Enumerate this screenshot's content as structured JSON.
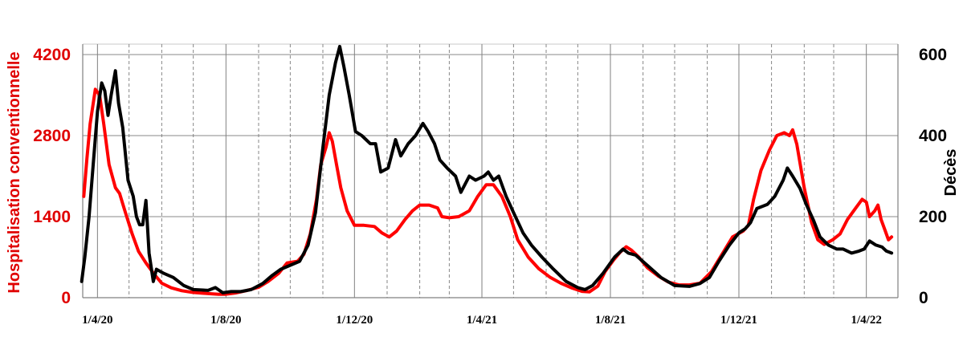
{
  "chart_data": {
    "type": "line",
    "ylabel": "Hospitalisation conventionnelle",
    "y2label": "Décès",
    "ylim": [
      0,
      4200
    ],
    "y2lim": [
      0,
      600
    ],
    "yticks": [
      0,
      1400,
      2800,
      4200
    ],
    "y2ticks": [
      0,
      200,
      400,
      600
    ],
    "xlim": [
      "2020-03-18",
      "2022-05-01"
    ],
    "xticks": [
      {
        "date": "2020-04-01",
        "label": "1/4/20"
      },
      {
        "date": "2020-08-01",
        "label": "1/8/20"
      },
      {
        "date": "2020-12-01",
        "label": "1/12/20"
      },
      {
        "date": "2021-04-01",
        "label": "1/4/21"
      },
      {
        "date": "2021-08-01",
        "label": "1/8/21"
      },
      {
        "date": "2021-12-01",
        "label": "1/12/21"
      },
      {
        "date": "2022-04-01",
        "label": "1/4/22"
      }
    ],
    "grid": true,
    "series": [
      {
        "axis": "left",
        "color": "#ff0000",
        "points": [
          [
            "2020-03-19",
            1750
          ],
          [
            "2020-03-22",
            2400
          ],
          [
            "2020-03-25",
            3000
          ],
          [
            "2020-03-30",
            3600
          ],
          [
            "2020-04-03",
            3500
          ],
          [
            "2020-04-07",
            3000
          ],
          [
            "2020-04-12",
            2300
          ],
          [
            "2020-04-18",
            1900
          ],
          [
            "2020-04-22",
            1800
          ],
          [
            "2020-04-27",
            1500
          ],
          [
            "2020-05-04",
            1100
          ],
          [
            "2020-05-10",
            800
          ],
          [
            "2020-05-17",
            600
          ],
          [
            "2020-05-25",
            400
          ],
          [
            "2020-06-01",
            250
          ],
          [
            "2020-06-10",
            170
          ],
          [
            "2020-06-20",
            120
          ],
          [
            "2020-07-01",
            90
          ],
          [
            "2020-07-15",
            70
          ],
          [
            "2020-07-25",
            60
          ],
          [
            "2020-08-01",
            60
          ],
          [
            "2020-08-10",
            80
          ],
          [
            "2020-08-20",
            120
          ],
          [
            "2020-09-01",
            180
          ],
          [
            "2020-09-10",
            280
          ],
          [
            "2020-09-20",
            420
          ],
          [
            "2020-09-28",
            600
          ],
          [
            "2020-10-08",
            630
          ],
          [
            "2020-10-14",
            750
          ],
          [
            "2020-10-20",
            1100
          ],
          [
            "2020-10-26",
            1700
          ],
          [
            "2020-10-30",
            2300
          ],
          [
            "2020-11-04",
            2600
          ],
          [
            "2020-11-07",
            2850
          ],
          [
            "2020-11-10",
            2700
          ],
          [
            "2020-11-14",
            2300
          ],
          [
            "2020-11-18",
            1900
          ],
          [
            "2020-11-24",
            1500
          ],
          [
            "2020-12-01",
            1250
          ],
          [
            "2020-12-10",
            1250
          ],
          [
            "2020-12-20",
            1230
          ],
          [
            "2020-12-27",
            1120
          ],
          [
            "2021-01-03",
            1050
          ],
          [
            "2021-01-10",
            1150
          ],
          [
            "2021-01-18",
            1350
          ],
          [
            "2021-01-25",
            1500
          ],
          [
            "2021-02-01",
            1600
          ],
          [
            "2021-02-10",
            1600
          ],
          [
            "2021-02-18",
            1550
          ],
          [
            "2021-02-22",
            1400
          ],
          [
            "2021-03-01",
            1380
          ],
          [
            "2021-03-10",
            1400
          ],
          [
            "2021-03-20",
            1500
          ],
          [
            "2021-03-28",
            1750
          ],
          [
            "2021-04-05",
            1950
          ],
          [
            "2021-04-12",
            1950
          ],
          [
            "2021-04-20",
            1750
          ],
          [
            "2021-04-28",
            1400
          ],
          [
            "2021-05-05",
            1000
          ],
          [
            "2021-05-15",
            700
          ],
          [
            "2021-05-25",
            500
          ],
          [
            "2021-06-05",
            350
          ],
          [
            "2021-06-15",
            250
          ],
          [
            "2021-06-25",
            170
          ],
          [
            "2021-07-05",
            110
          ],
          [
            "2021-07-12",
            100
          ],
          [
            "2021-07-20",
            200
          ],
          [
            "2021-07-27",
            450
          ],
          [
            "2021-08-04",
            650
          ],
          [
            "2021-08-10",
            780
          ],
          [
            "2021-08-16",
            880
          ],
          [
            "2021-08-21",
            820
          ],
          [
            "2021-08-28",
            700
          ],
          [
            "2021-09-05",
            520
          ],
          [
            "2021-09-15",
            380
          ],
          [
            "2021-09-25",
            270
          ],
          [
            "2021-10-05",
            220
          ],
          [
            "2021-10-15",
            220
          ],
          [
            "2021-10-25",
            250
          ],
          [
            "2021-11-05",
            450
          ],
          [
            "2021-11-15",
            750
          ],
          [
            "2021-11-25",
            1050
          ],
          [
            "2021-12-05",
            1150
          ],
          [
            "2021-12-10",
            1250
          ],
          [
            "2021-12-15",
            1700
          ],
          [
            "2021-12-22",
            2200
          ],
          [
            "2021-12-30",
            2550
          ],
          [
            "2022-01-06",
            2800
          ],
          [
            "2022-01-13",
            2850
          ],
          [
            "2022-01-18",
            2800
          ],
          [
            "2022-01-21",
            2900
          ],
          [
            "2022-01-25",
            2650
          ],
          [
            "2022-02-01",
            1900
          ],
          [
            "2022-02-08",
            1300
          ],
          [
            "2022-02-14",
            1000
          ],
          [
            "2022-02-20",
            920
          ],
          [
            "2022-02-28",
            1000
          ],
          [
            "2022-03-07",
            1100
          ],
          [
            "2022-03-14",
            1350
          ],
          [
            "2022-03-22",
            1550
          ],
          [
            "2022-03-28",
            1700
          ],
          [
            "2022-04-01",
            1650
          ],
          [
            "2022-04-04",
            1400
          ],
          [
            "2022-04-09",
            1500
          ],
          [
            "2022-04-12",
            1600
          ],
          [
            "2022-04-15",
            1350
          ],
          [
            "2022-04-19",
            1150
          ],
          [
            "2022-04-22",
            1000
          ],
          [
            "2022-04-25",
            1050
          ]
        ]
      },
      {
        "axis": "right",
        "color": "#000000",
        "points": [
          [
            "2020-03-17",
            40
          ],
          [
            "2020-03-20",
            100
          ],
          [
            "2020-03-24",
            200
          ],
          [
            "2020-03-28",
            330
          ],
          [
            "2020-04-01",
            460
          ],
          [
            "2020-04-05",
            530
          ],
          [
            "2020-04-08",
            510
          ],
          [
            "2020-04-11",
            450
          ],
          [
            "2020-04-14",
            500
          ],
          [
            "2020-04-18",
            560
          ],
          [
            "2020-04-21",
            480
          ],
          [
            "2020-04-25",
            420
          ],
          [
            "2020-04-30",
            290
          ],
          [
            "2020-05-05",
            250
          ],
          [
            "2020-05-08",
            200
          ],
          [
            "2020-05-11",
            180
          ],
          [
            "2020-05-14",
            180
          ],
          [
            "2020-05-17",
            240
          ],
          [
            "2020-05-20",
            110
          ],
          [
            "2020-05-24",
            40
          ],
          [
            "2020-05-27",
            70
          ],
          [
            "2020-06-03",
            60
          ],
          [
            "2020-06-12",
            50
          ],
          [
            "2020-06-22",
            30
          ],
          [
            "2020-07-01",
            20
          ],
          [
            "2020-07-15",
            18
          ],
          [
            "2020-07-22",
            25
          ],
          [
            "2020-07-29",
            12
          ],
          [
            "2020-08-06",
            15
          ],
          [
            "2020-08-15",
            15
          ],
          [
            "2020-08-25",
            20
          ],
          [
            "2020-09-05",
            35
          ],
          [
            "2020-09-14",
            55
          ],
          [
            "2020-09-22",
            70
          ],
          [
            "2020-10-01",
            80
          ],
          [
            "2020-10-10",
            90
          ],
          [
            "2020-10-18",
            130
          ],
          [
            "2020-10-25",
            210
          ],
          [
            "2020-11-01",
            370
          ],
          [
            "2020-11-07",
            500
          ],
          [
            "2020-11-13",
            580
          ],
          [
            "2020-11-17",
            620
          ],
          [
            "2020-11-21",
            570
          ],
          [
            "2020-11-26",
            500
          ],
          [
            "2020-12-02",
            410
          ],
          [
            "2020-12-08",
            400
          ],
          [
            "2020-12-16",
            380
          ],
          [
            "2020-12-21",
            380
          ],
          [
            "2020-12-26",
            310
          ],
          [
            "2021-01-02",
            320
          ],
          [
            "2021-01-09",
            390
          ],
          [
            "2021-01-14",
            350
          ],
          [
            "2021-01-21",
            380
          ],
          [
            "2021-01-28",
            400
          ],
          [
            "2021-02-04",
            430
          ],
          [
            "2021-02-09",
            410
          ],
          [
            "2021-02-15",
            380
          ],
          [
            "2021-02-20",
            340
          ],
          [
            "2021-02-27",
            320
          ],
          [
            "2021-03-07",
            300
          ],
          [
            "2021-03-12",
            260
          ],
          [
            "2021-03-20",
            300
          ],
          [
            "2021-03-26",
            290
          ],
          [
            "2021-04-03",
            300
          ],
          [
            "2021-04-07",
            310
          ],
          [
            "2021-04-12",
            290
          ],
          [
            "2021-04-17",
            300
          ],
          [
            "2021-04-24",
            250
          ],
          [
            "2021-05-01",
            210
          ],
          [
            "2021-05-10",
            160
          ],
          [
            "2021-05-18",
            130
          ],
          [
            "2021-05-28",
            100
          ],
          [
            "2021-06-08",
            70
          ],
          [
            "2021-06-20",
            40
          ],
          [
            "2021-07-01",
            25
          ],
          [
            "2021-07-08",
            20
          ],
          [
            "2021-07-15",
            30
          ],
          [
            "2021-07-25",
            60
          ],
          [
            "2021-08-05",
            100
          ],
          [
            "2021-08-13",
            120
          ],
          [
            "2021-08-18",
            110
          ],
          [
            "2021-08-25",
            105
          ],
          [
            "2021-09-05",
            80
          ],
          [
            "2021-09-18",
            50
          ],
          [
            "2021-10-01",
            30
          ],
          [
            "2021-10-15",
            28
          ],
          [
            "2021-10-25",
            35
          ],
          [
            "2021-11-03",
            50
          ],
          [
            "2021-11-12",
            90
          ],
          [
            "2021-11-22",
            130
          ],
          [
            "2021-12-01",
            160
          ],
          [
            "2021-12-07",
            170
          ],
          [
            "2021-12-12",
            185
          ],
          [
            "2021-12-18",
            220
          ],
          [
            "2021-12-28",
            230
          ],
          [
            "2022-01-04",
            250
          ],
          [
            "2022-01-12",
            290
          ],
          [
            "2022-01-16",
            320
          ],
          [
            "2022-01-21",
            300
          ],
          [
            "2022-01-28",
            270
          ],
          [
            "2022-02-03",
            230
          ],
          [
            "2022-02-10",
            190
          ],
          [
            "2022-02-16",
            150
          ],
          [
            "2022-02-24",
            130
          ],
          [
            "2022-03-04",
            120
          ],
          [
            "2022-03-10",
            120
          ],
          [
            "2022-03-18",
            110
          ],
          [
            "2022-03-25",
            115
          ],
          [
            "2022-03-30",
            120
          ],
          [
            "2022-04-04",
            140
          ],
          [
            "2022-04-10",
            130
          ],
          [
            "2022-04-16",
            125
          ],
          [
            "2022-04-20",
            115
          ],
          [
            "2022-04-25",
            110
          ]
        ]
      }
    ]
  }
}
